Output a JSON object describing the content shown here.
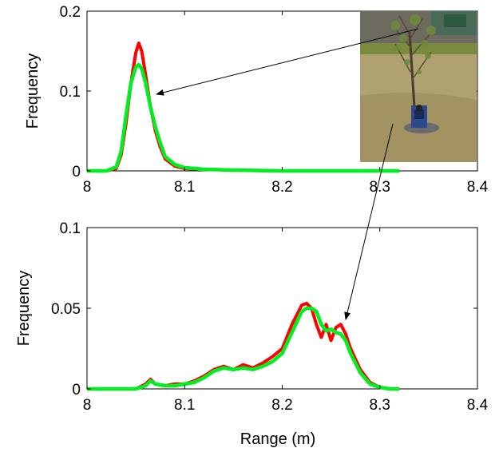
{
  "figure": {
    "xlabel": "Range (m)",
    "photo_description_icon": "tree-photo"
  },
  "chart_data": [
    {
      "type": "line",
      "ylabel": "Frequency",
      "xlim": [
        8,
        8.4
      ],
      "ylim": [
        0,
        0.2
      ],
      "xticks": [
        "8",
        "8.1",
        "8.2",
        "8.3",
        "8.4"
      ],
      "yticks": [
        "0",
        "0.1",
        "0.2"
      ],
      "series": [
        {
          "color": "#ff0000",
          "x": [
            8.0,
            8.02,
            8.03,
            8.035,
            8.04,
            8.045,
            8.05,
            8.053,
            8.056,
            8.06,
            8.065,
            8.07,
            8.075,
            8.08,
            8.09,
            8.1,
            8.12,
            8.15,
            8.2,
            8.25,
            8.3,
            8.32
          ],
          "y": [
            0.0,
            0.0,
            0.003,
            0.02,
            0.06,
            0.11,
            0.148,
            0.16,
            0.15,
            0.12,
            0.08,
            0.05,
            0.03,
            0.015,
            0.006,
            0.003,
            0.002,
            0.001,
            0.0,
            0.0,
            0.0,
            0.0
          ]
        },
        {
          "color": "#00ee22",
          "x": [
            8.0,
            8.02,
            8.03,
            8.035,
            8.04,
            8.045,
            8.05,
            8.053,
            8.056,
            8.06,
            8.065,
            8.07,
            8.075,
            8.08,
            8.09,
            8.1,
            8.12,
            8.15,
            8.2,
            8.25,
            8.3,
            8.32
          ],
          "y": [
            0.0,
            0.0,
            0.005,
            0.025,
            0.07,
            0.11,
            0.13,
            0.133,
            0.128,
            0.11,
            0.08,
            0.055,
            0.035,
            0.018,
            0.008,
            0.004,
            0.002,
            0.001,
            0.0,
            0.0,
            0.0,
            0.0
          ]
        }
      ]
    },
    {
      "type": "line",
      "ylabel": "Frequency",
      "xlim": [
        8,
        8.4
      ],
      "ylim": [
        0,
        0.1
      ],
      "xticks": [
        "8",
        "8.1",
        "8.2",
        "8.3",
        "8.4"
      ],
      "yticks": [
        "0",
        "0.05",
        "0.1"
      ],
      "series": [
        {
          "color": "#ff0000",
          "x": [
            8.0,
            8.05,
            8.06,
            8.065,
            8.07,
            8.08,
            8.09,
            8.1,
            8.11,
            8.12,
            8.13,
            8.14,
            8.15,
            8.16,
            8.17,
            8.18,
            8.19,
            8.2,
            8.21,
            8.22,
            8.225,
            8.23,
            8.235,
            8.24,
            8.245,
            8.25,
            8.255,
            8.26,
            8.265,
            8.27,
            8.28,
            8.29,
            8.3,
            8.31,
            8.32
          ],
          "y": [
            0.0,
            0.0,
            0.003,
            0.006,
            0.003,
            0.002,
            0.003,
            0.003,
            0.005,
            0.008,
            0.012,
            0.014,
            0.012,
            0.015,
            0.013,
            0.016,
            0.02,
            0.025,
            0.04,
            0.052,
            0.053,
            0.05,
            0.04,
            0.032,
            0.04,
            0.03,
            0.038,
            0.04,
            0.034,
            0.025,
            0.012,
            0.004,
            0.001,
            0.0,
            0.0
          ]
        },
        {
          "color": "#00ee22",
          "x": [
            8.0,
            8.05,
            8.06,
            8.065,
            8.07,
            8.08,
            8.09,
            8.1,
            8.11,
            8.12,
            8.13,
            8.14,
            8.15,
            8.16,
            8.17,
            8.18,
            8.19,
            8.2,
            8.21,
            8.22,
            8.225,
            8.23,
            8.235,
            8.24,
            8.245,
            8.25,
            8.255,
            8.26,
            8.265,
            8.27,
            8.28,
            8.29,
            8.3,
            8.31,
            8.32
          ],
          "y": [
            0.0,
            0.0,
            0.002,
            0.005,
            0.003,
            0.002,
            0.002,
            0.003,
            0.004,
            0.007,
            0.011,
            0.013,
            0.012,
            0.013,
            0.012,
            0.014,
            0.017,
            0.022,
            0.035,
            0.048,
            0.05,
            0.05,
            0.048,
            0.04,
            0.036,
            0.037,
            0.035,
            0.034,
            0.03,
            0.022,
            0.01,
            0.003,
            0.001,
            0.0,
            0.0
          ]
        }
      ]
    }
  ]
}
